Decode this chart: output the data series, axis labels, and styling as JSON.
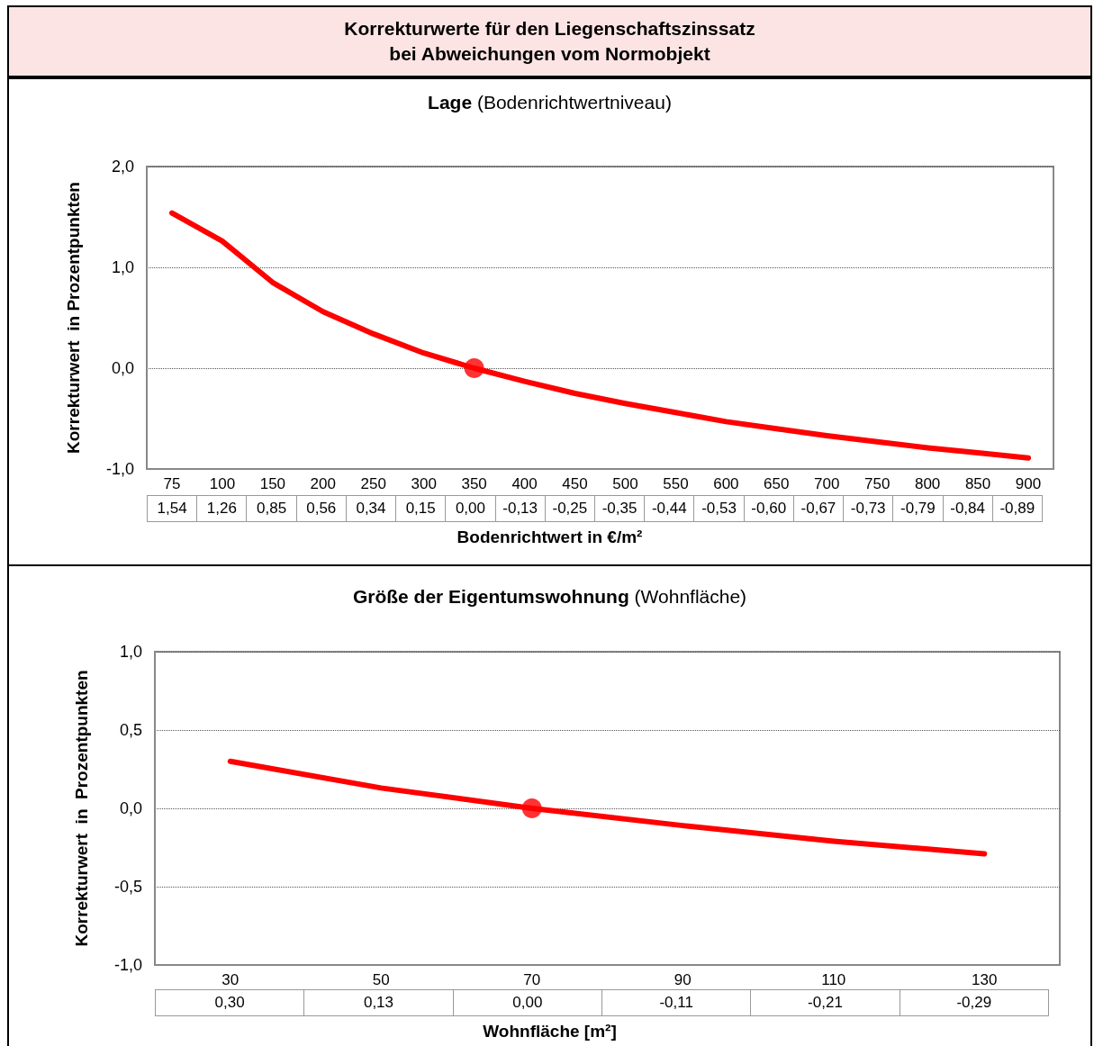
{
  "chart_data": [
    {
      "type": "line",
      "title": "Korrekturwerte für den Liegenschaftszinssatz\nbei Abweichungen vom Normobjekt",
      "subtitle": "Lage (Bodenrichtwertniveau)",
      "xlabel": "Bodenrichtwert in €/m²",
      "ylabel": "Korrekturwert  in Prozentpunkten",
      "categories": [
        "75",
        "100",
        "150",
        "200",
        "250",
        "300",
        "350",
        "400",
        "450",
        "500",
        "550",
        "600",
        "650",
        "700",
        "750",
        "800",
        "850",
        "900"
      ],
      "ylim": [
        -1,
        2
      ],
      "yticks": [
        {
          "value": -1,
          "label": "-1,0"
        },
        {
          "value": 0,
          "label": "0,0"
        },
        {
          "value": 1,
          "label": "1,0"
        },
        {
          "value": 2,
          "label": "2,0"
        }
      ],
      "grid": "y",
      "line_style": "solid",
      "series": [
        {
          "color": "#ff0000",
          "marker": "none",
          "values": [
            1.54,
            1.26,
            0.85,
            0.56,
            0.34,
            0.15,
            0.0,
            -0.13,
            -0.25,
            -0.35,
            -0.44,
            -0.53,
            -0.6,
            -0.67,
            -0.73,
            -0.79,
            -0.84,
            -0.89
          ],
          "value_labels": [
            "1,54",
            "1,26",
            "0,85",
            "0,56",
            "0,34",
            "0,15",
            "0,00",
            "-0,13",
            "-0,25",
            "-0,35",
            "-0,44",
            "-0,53",
            "-0,60",
            "-0,67",
            "-0,73",
            "-0,79",
            "-0,84",
            "-0,89"
          ]
        },
        {
          "type": "scatter",
          "color": "#ff0000",
          "marker": "circle",
          "x": [
            "350"
          ],
          "values": [
            0.0
          ]
        }
      ]
    },
    {
      "type": "line",
      "title": "Größe der Eigentumswohnung (Wohnfläche)",
      "xlabel": "Wohnfläche [m²]",
      "ylabel": "Korrekturwert  in  Prozentpunkten",
      "categories": [
        "30",
        "50",
        "70",
        "90",
        "110",
        "130"
      ],
      "ylim": [
        -1,
        1
      ],
      "yticks": [
        {
          "value": -1,
          "label": "-1,0"
        },
        {
          "value": -0.5,
          "label": "-0,5"
        },
        {
          "value": 0,
          "label": "0,0"
        },
        {
          "value": 0.5,
          "label": "0,5"
        },
        {
          "value": 1,
          "label": "1,0"
        }
      ],
      "grid": "y",
      "line_style": "solid",
      "series": [
        {
          "color": "#ff0000",
          "marker": "none",
          "values": [
            0.3,
            0.13,
            0.0,
            -0.11,
            -0.21,
            -0.29
          ],
          "value_labels": [
            "0,30",
            "0,13",
            "0,00",
            "-0,11",
            "-0,21",
            "-0,29"
          ]
        },
        {
          "type": "scatter",
          "color": "#ff0000",
          "marker": "circle",
          "x": [
            "70"
          ],
          "values": [
            0.0
          ]
        }
      ]
    }
  ]
}
